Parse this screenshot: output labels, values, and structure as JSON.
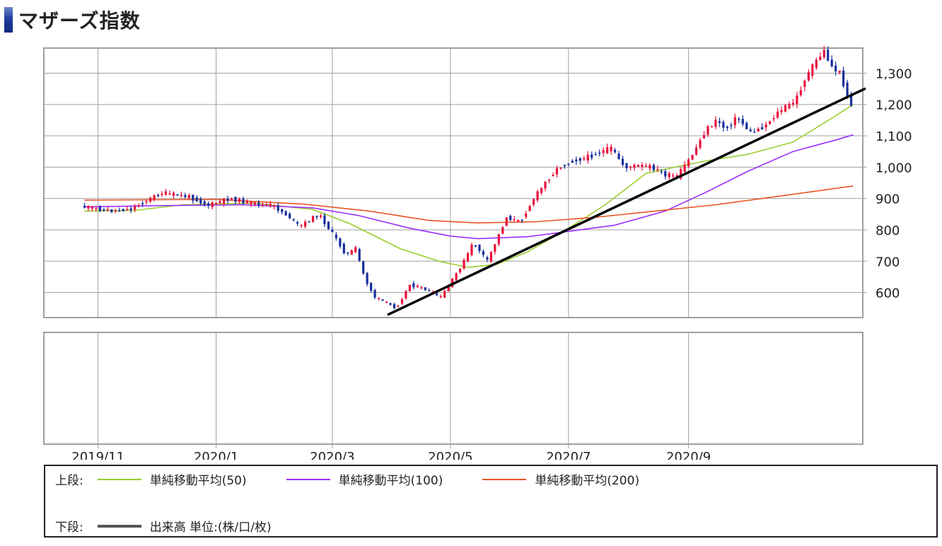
{
  "title": "マザーズ指数",
  "colors": {
    "up": "#e8123c",
    "down": "#1a2f9c",
    "ma50": "#9acd32",
    "ma100": "#9b30ff",
    "ma200": "#e8552a",
    "trendline": "#000000",
    "grid": "#a0a0a0",
    "title_accent": "#1f3fa0"
  },
  "chart_data": {
    "type": "line",
    "ylim": [
      520,
      1380
    ],
    "y_ticks": [
      "1,300",
      "1,200",
      "1,100",
      "1,000",
      "900",
      "800",
      "700",
      "600"
    ],
    "y_tick_values": [
      1300,
      1200,
      1100,
      1000,
      900,
      800,
      700,
      600
    ],
    "x_tick_labels": [
      "2019/11",
      "2020/1",
      "2020/3",
      "2020/5",
      "2020/7",
      "2020/9"
    ],
    "x_tick_dates": [
      "2019-11-01",
      "2020-01-01",
      "2020-03-01",
      "2020-05-01",
      "2020-07-01",
      "2020-09-01"
    ],
    "x_range": [
      "2019-10-04",
      "2020-11-30"
    ],
    "price": {
      "name": "マザーズ指数",
      "style": "candlestick",
      "points": [
        [
          "2019-10-25",
          875
        ],
        [
          "2019-11-10",
          860
        ],
        [
          "2019-11-20",
          866
        ],
        [
          "2019-11-30",
          900
        ],
        [
          "2019-12-06",
          918
        ],
        [
          "2019-12-20",
          905
        ],
        [
          "2019-12-30",
          878
        ],
        [
          "2020-01-10",
          900
        ],
        [
          "2020-01-20",
          886
        ],
        [
          "2020-02-01",
          878
        ],
        [
          "2020-02-10",
          840
        ],
        [
          "2020-02-15",
          810
        ],
        [
          "2020-02-25",
          850
        ],
        [
          "2020-03-05",
          770
        ],
        [
          "2020-03-10",
          720
        ],
        [
          "2020-03-15",
          740
        ],
        [
          "2020-03-20",
          640
        ],
        [
          "2020-03-25",
          585
        ],
        [
          "2020-03-30",
          570
        ],
        [
          "2020-04-05",
          550
        ],
        [
          "2020-04-12",
          625
        ],
        [
          "2020-04-20",
          610
        ],
        [
          "2020-04-28",
          585
        ],
        [
          "2020-05-05",
          650
        ],
        [
          "2020-05-10",
          700
        ],
        [
          "2020-05-15",
          760
        ],
        [
          "2020-05-22",
          700
        ],
        [
          "2020-06-01",
          840
        ],
        [
          "2020-06-08",
          825
        ],
        [
          "2020-06-15",
          900
        ],
        [
          "2020-06-22",
          960
        ],
        [
          "2020-06-28",
          1000
        ],
        [
          "2020-07-05",
          1020
        ],
        [
          "2020-07-12",
          1030
        ],
        [
          "2020-07-20",
          1050
        ],
        [
          "2020-07-25",
          1060
        ],
        [
          "2020-08-01",
          1000
        ],
        [
          "2020-08-08",
          1005
        ],
        [
          "2020-08-15",
          1000
        ],
        [
          "2020-08-22",
          975
        ],
        [
          "2020-08-28",
          970
        ],
        [
          "2020-09-05",
          1040
        ],
        [
          "2020-09-12",
          1120
        ],
        [
          "2020-09-18",
          1150
        ],
        [
          "2020-09-22",
          1120
        ],
        [
          "2020-09-28",
          1160
        ],
        [
          "2020-10-05",
          1110
        ],
        [
          "2020-10-12",
          1130
        ],
        [
          "2020-10-20",
          1180
        ],
        [
          "2020-10-28",
          1210
        ],
        [
          "2020-11-02",
          1280
        ],
        [
          "2020-11-08",
          1340
        ],
        [
          "2020-11-12",
          1370
        ],
        [
          "2020-11-16",
          1320
        ],
        [
          "2020-11-20",
          1300
        ],
        [
          "2020-11-23",
          1250
        ],
        [
          "2020-11-25",
          1200
        ]
      ]
    },
    "series": [
      {
        "name": "単純移動平均(50)",
        "points": [
          [
            "2019-10-25",
            860
          ],
          [
            "2019-11-20",
            862
          ],
          [
            "2019-12-15",
            880
          ],
          [
            "2020-01-20",
            885
          ],
          [
            "2020-02-20",
            865
          ],
          [
            "2020-03-10",
            820
          ],
          [
            "2020-04-05",
            740
          ],
          [
            "2020-04-25",
            700
          ],
          [
            "2020-05-10",
            680
          ],
          [
            "2020-05-25",
            690
          ],
          [
            "2020-06-10",
            730
          ],
          [
            "2020-07-01",
            805
          ],
          [
            "2020-07-20",
            880
          ],
          [
            "2020-08-10",
            980
          ],
          [
            "2020-08-25",
            1000
          ],
          [
            "2020-09-10",
            1020
          ],
          [
            "2020-10-01",
            1040
          ],
          [
            "2020-10-25",
            1080
          ],
          [
            "2020-11-15",
            1160
          ],
          [
            "2020-11-25",
            1200
          ]
        ]
      },
      {
        "name": "単純移動平均(100)",
        "points": [
          [
            "2019-10-25",
            873
          ],
          [
            "2019-12-01",
            877
          ],
          [
            "2020-01-15",
            880
          ],
          [
            "2020-02-20",
            870
          ],
          [
            "2020-03-15",
            845
          ],
          [
            "2020-04-10",
            805
          ],
          [
            "2020-05-01",
            780
          ],
          [
            "2020-05-15",
            772
          ],
          [
            "2020-06-10",
            778
          ],
          [
            "2020-07-01",
            795
          ],
          [
            "2020-07-25",
            815
          ],
          [
            "2020-08-20",
            860
          ],
          [
            "2020-09-10",
            920
          ],
          [
            "2020-10-01",
            985
          ],
          [
            "2020-10-25",
            1050
          ],
          [
            "2020-11-15",
            1085
          ],
          [
            "2020-11-25",
            1103
          ]
        ]
      },
      {
        "name": "単純移動平均(200)",
        "points": [
          [
            "2019-10-25",
            895
          ],
          [
            "2020-01-01",
            897
          ],
          [
            "2020-02-15",
            882
          ],
          [
            "2020-03-20",
            860
          ],
          [
            "2020-04-20",
            830
          ],
          [
            "2020-05-15",
            822
          ],
          [
            "2020-06-15",
            826
          ],
          [
            "2020-07-15",
            840
          ],
          [
            "2020-08-15",
            860
          ],
          [
            "2020-09-15",
            880
          ],
          [
            "2020-10-15",
            905
          ],
          [
            "2020-11-25",
            940
          ]
        ]
      }
    ],
    "trendline": [
      [
        "2020-03-30",
        530
      ],
      [
        "2020-12-01",
        1250
      ]
    ],
    "volume": [],
    "grid": true
  },
  "legend": {
    "upper_label": "上段:",
    "lower_label": "下段:",
    "items": [
      {
        "text": "単純移動平均(50)",
        "color_key": "ma50"
      },
      {
        "text": "単純移動平均(100)",
        "color_key": "ma100"
      },
      {
        "text": "単純移動平均(200)",
        "color_key": "ma200"
      }
    ],
    "volume_text": "出来高 単位:(株/口/枚)"
  }
}
